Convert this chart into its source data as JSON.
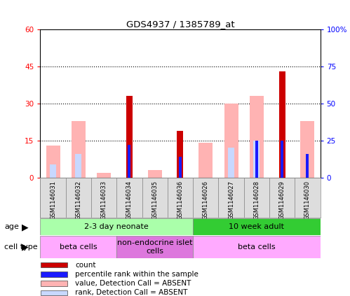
{
  "title": "GDS4937 / 1385789_at",
  "samples": [
    "GSM1146031",
    "GSM1146032",
    "GSM1146033",
    "GSM1146034",
    "GSM1146035",
    "GSM1146036",
    "GSM1146026",
    "GSM1146027",
    "GSM1146028",
    "GSM1146029",
    "GSM1146030"
  ],
  "count_values": [
    0,
    0,
    0,
    33,
    0,
    19,
    0,
    0,
    0,
    43,
    0
  ],
  "rank_values": [
    0,
    0,
    0,
    22,
    0,
    14,
    0,
    0,
    25,
    25,
    16
  ],
  "absent_value_values": [
    13,
    23,
    2,
    0,
    3,
    0,
    14,
    30,
    33,
    0,
    23
  ],
  "absent_rank_values": [
    9,
    16,
    0,
    0,
    0,
    0,
    0,
    20,
    25,
    0,
    0
  ],
  "ylim_left": [
    0,
    60
  ],
  "ylim_right": [
    0,
    100
  ],
  "yticks_left": [
    0,
    15,
    30,
    45,
    60
  ],
  "ytick_labels_left": [
    "0",
    "15",
    "30",
    "45",
    "60"
  ],
  "yticks_right": [
    0,
    25,
    50,
    75,
    100
  ],
  "ytick_labels_right": [
    "0",
    "25",
    "50",
    "75",
    "100%"
  ],
  "color_count": "#cc0000",
  "color_rank": "#1a1aff",
  "color_absent_value": "#ffb3b3",
  "color_absent_rank": "#c8d8ff",
  "age_groups": [
    {
      "label": "2-3 day neonate",
      "start": 0,
      "end": 6,
      "color": "#aaffaa"
    },
    {
      "label": "10 week adult",
      "start": 6,
      "end": 11,
      "color": "#33cc33"
    }
  ],
  "cell_type_groups": [
    {
      "label": "beta cells",
      "start": 0,
      "end": 3,
      "color": "#ffaaff"
    },
    {
      "label": "non-endocrine islet\ncells",
      "start": 3,
      "end": 6,
      "color": "#dd77dd"
    },
    {
      "label": "beta cells",
      "start": 6,
      "end": 11,
      "color": "#ffaaff"
    }
  ],
  "bar_width": 0.55,
  "grid_yticks": [
    15,
    30,
    45
  ],
  "label_age": "age",
  "label_cell_type": "cell type",
  "legend_items": [
    {
      "label": "count",
      "color": "#cc0000"
    },
    {
      "label": "percentile rank within the sample",
      "color": "#1a1aff"
    },
    {
      "label": "value, Detection Call = ABSENT",
      "color": "#ffb3b3"
    },
    {
      "label": "rank, Detection Call = ABSENT",
      "color": "#c8d8ff"
    }
  ]
}
